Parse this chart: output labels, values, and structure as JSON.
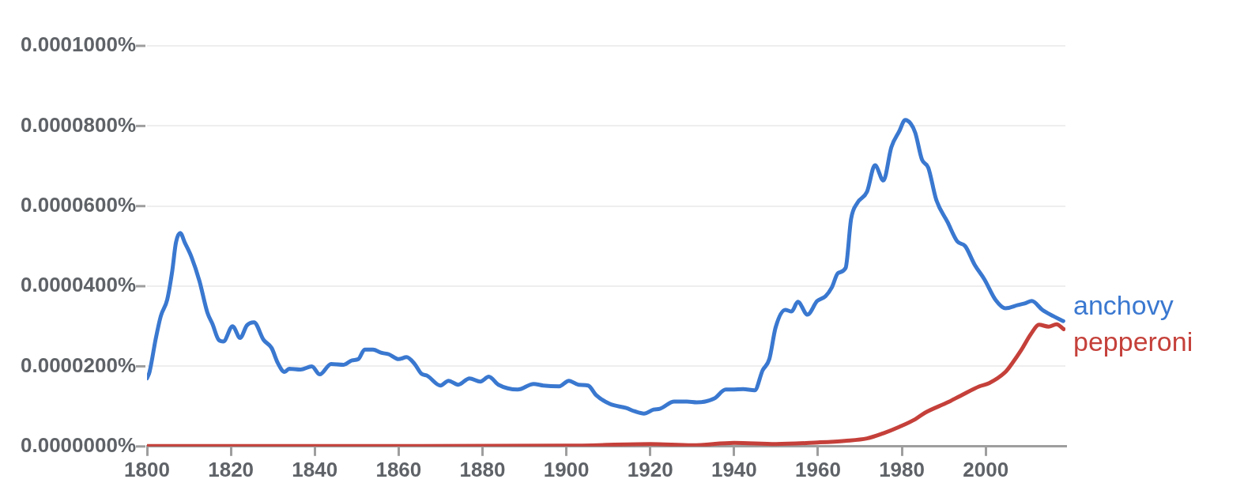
{
  "chart_data": {
    "type": "line",
    "xlim": [
      1800,
      2019
    ],
    "xticks": [
      1800,
      1820,
      1840,
      1860,
      1880,
      1900,
      1920,
      1940,
      1960,
      1980,
      2000
    ],
    "ylim": [
      0,
      0.0001
    ],
    "yticks": [
      {
        "value": 0,
        "label": "0.0000000%"
      },
      {
        "value": 2e-05,
        "label": "0.0000200%"
      },
      {
        "value": 4e-05,
        "label": "0.0000400%"
      },
      {
        "value": 6e-05,
        "label": "0.0000600%"
      },
      {
        "value": 8e-05,
        "label": "0.0000800%"
      },
      {
        "value": 0.0001,
        "label": "0.0001000%"
      }
    ],
    "grid": "y",
    "marker": "none",
    "line_style": "solid",
    "series": [
      {
        "name": "anchovy",
        "color": "#3a78d0",
        "x": [
          1800,
          1800.6,
          1802.1,
          1803.3,
          1804.8,
          1806,
          1806.9,
          1807.9,
          1809,
          1810.6,
          1812.5,
          1814.4,
          1815.6,
          1817.1,
          1818.2,
          1820.4,
          1822.2,
          1823.8,
          1825.5,
          1827.8,
          1829.7,
          1831.2,
          1832.8,
          1833.9,
          1836.6,
          1839.3,
          1841.2,
          1843.9,
          1846.9,
          1848.9,
          1850.4,
          1851.9,
          1853.9,
          1855.8,
          1857.7,
          1860,
          1861.9,
          1863.8,
          1865.4,
          1866.9,
          1870,
          1871.9,
          1874.2,
          1876.9,
          1879.5,
          1881.5,
          1883.8,
          1888.4,
          1892.2,
          1894.5,
          1898.3,
          1900.6,
          1902.9,
          1905.2,
          1907.1,
          1910.4,
          1914.3,
          1916.2,
          1918.5,
          1920.8,
          1922.3,
          1925.7,
          1928.8,
          1931.1,
          1935.3,
          1938,
          1939.5,
          1942.2,
          1944.9,
          1946.8,
          1948.4,
          1949.9,
          1952.2,
          1953.7,
          1955.2,
          1957.5,
          1959.8,
          1961.8,
          1963.3,
          1964.8,
          1966.6,
          1967.9,
          1969.4,
          1971.7,
          1973.6,
          1975.6,
          1977.5,
          1979.4,
          1980.8,
          1982.1,
          1983.2,
          1984.8,
          1986.3,
          1988.2,
          1990.9,
          1993.2,
          1995.1,
          1997.4,
          1999.7,
          2002.4,
          2004.7,
          2007.7,
          2009.3,
          2011,
          2013.5,
          2016.2,
          2018.5
        ],
        "values": [
          1.7e-05,
          1.86e-05,
          2.7e-05,
          3.26e-05,
          3.66e-05,
          4.37e-05,
          5.09e-05,
          5.33e-05,
          5.09e-05,
          4.73e-05,
          4.13e-05,
          3.34e-05,
          3.06e-05,
          2.66e-05,
          2.62e-05,
          3e-05,
          2.71e-05,
          3.02e-05,
          3.1e-05,
          2.66e-05,
          2.46e-05,
          2.08e-05,
          1.86e-05,
          1.94e-05,
          1.92e-05,
          2e-05,
          1.8e-05,
          2.06e-05,
          2.04e-05,
          2.15e-05,
          2.18e-05,
          2.42e-05,
          2.42e-05,
          2.34e-05,
          2.3e-05,
          2.18e-05,
          2.23e-05,
          2.06e-05,
          1.82e-05,
          1.76e-05,
          1.52e-05,
          1.64e-05,
          1.54e-05,
          1.7e-05,
          1.62e-05,
          1.74e-05,
          1.54e-05,
          1.42e-05,
          1.56e-05,
          1.52e-05,
          1.5e-05,
          1.64e-05,
          1.54e-05,
          1.52e-05,
          1.28e-05,
          1.06e-05,
          9.6e-06,
          8.8e-06,
          8.2e-06,
          9.2e-06,
          9.4e-06,
          1.12e-05,
          1.12e-05,
          1.1e-05,
          1.2e-05,
          1.42e-05,
          1.42e-05,
          1.43e-05,
          1.4e-05,
          1.9e-05,
          2.18e-05,
          2.97e-05,
          3.41e-05,
          3.37e-05,
          3.61e-05,
          3.29e-05,
          3.63e-05,
          3.75e-05,
          3.97e-05,
          4.33e-05,
          4.46e-05,
          5.68e-05,
          6.08e-05,
          6.36e-05,
          7.02e-05,
          6.64e-05,
          7.47e-05,
          7.87e-05,
          8.15e-05,
          8.06e-05,
          7.83e-05,
          7.16e-05,
          6.96e-05,
          6.16e-05,
          5.6e-05,
          5.12e-05,
          5e-05,
          4.53e-05,
          4.17e-05,
          3.65e-05,
          3.45e-05,
          3.53e-05,
          3.57e-05,
          3.63e-05,
          3.41e-05,
          3.25e-05,
          3.13e-05
        ]
      },
      {
        "name": "pepperoni",
        "color": "#c5403a",
        "x": [
          1800,
          1900,
          1920,
          1930,
          1940,
          1950,
          1960,
          1966.4,
          1971.7,
          1975.6,
          1979.4,
          1983.2,
          1985.5,
          1990.9,
          1993.9,
          1998.5,
          2000.8,
          2004.7,
          2006.2,
          2008.5,
          2010.8,
          2012.7,
          2015,
          2016.9,
          2018.6
        ],
        "values": [
          1e-07,
          2e-07,
          6e-07,
          3e-07,
          9e-07,
          6e-07,
          1e-06,
          1.4e-06,
          2e-06,
          3.3e-06,
          4.9e-06,
          6.8e-06,
          8.4e-06,
          1.1e-05,
          1.26e-05,
          1.5e-05,
          1.58e-05,
          1.86e-05,
          2.06e-05,
          2.41e-05,
          2.81e-05,
          3.04e-05,
          2.99e-05,
          3.05e-05,
          2.93e-05
        ]
      }
    ]
  }
}
